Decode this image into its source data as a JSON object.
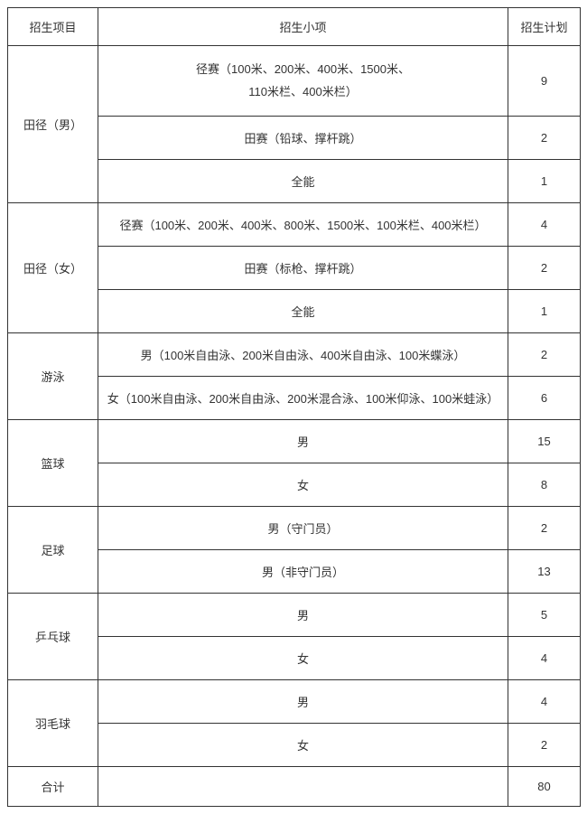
{
  "header": {
    "category": "招生项目",
    "subitem": "招生小项",
    "plan": "招生计划"
  },
  "groups": [
    {
      "category": "田径（男）",
      "rows": [
        {
          "sub_line1": "径赛（100米、200米、400米、1500米、",
          "sub_line2": "110米栏、400米栏）",
          "plan": "9",
          "tall": true
        },
        {
          "sub": "田赛（铅球、撑杆跳）",
          "plan": "2"
        },
        {
          "sub": "全能",
          "plan": "1"
        }
      ]
    },
    {
      "category": "田径（女）",
      "rows": [
        {
          "sub": "径赛（100米、200米、400米、800米、1500米、100米栏、400米栏）",
          "plan": "4"
        },
        {
          "sub": "田赛（标枪、撑杆跳）",
          "plan": "2"
        },
        {
          "sub": "全能",
          "plan": "1"
        }
      ]
    },
    {
      "category": "游泳",
      "rows": [
        {
          "sub": "男（100米自由泳、200米自由泳、400米自由泳、100米蝶泳）",
          "plan": "2"
        },
        {
          "sub": "女（100米自由泳、200米自由泳、200米混合泳、100米仰泳、100米蛙泳）",
          "plan": "6"
        }
      ]
    },
    {
      "category": "篮球",
      "rows": [
        {
          "sub": "男",
          "plan": "15"
        },
        {
          "sub": "女",
          "plan": "8"
        }
      ]
    },
    {
      "category": "足球",
      "rows": [
        {
          "sub": "男（守门员）",
          "plan": "2"
        },
        {
          "sub": "男（非守门员）",
          "plan": "13"
        }
      ]
    },
    {
      "category": "乒乓球",
      "rows": [
        {
          "sub": "男",
          "plan": "5"
        },
        {
          "sub": "女",
          "plan": "4"
        }
      ]
    },
    {
      "category": "羽毛球",
      "rows": [
        {
          "sub": "男",
          "plan": "4"
        },
        {
          "sub": "女",
          "plan": "2"
        }
      ]
    }
  ],
  "total": {
    "label": "合计",
    "sub": "",
    "plan": "80"
  },
  "style": {
    "border_color": "#333333",
    "text_color": "#333333",
    "background": "#ffffff",
    "font_size": 13
  }
}
